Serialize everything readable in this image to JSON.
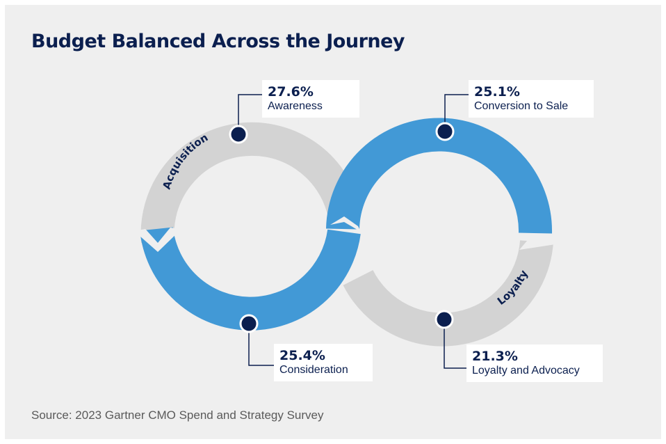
{
  "title": "Budget Balanced Across the Journey",
  "source": "Source: 2023 Gartner CMO Spend and Strategy Survey",
  "loop_labels": {
    "left": "Acquisition",
    "right": "Loyalty"
  },
  "stages": [
    {
      "id": "awareness",
      "value": "27.6%",
      "label": "Awareness"
    },
    {
      "id": "consideration",
      "value": "25.4%",
      "label": "Consideration"
    },
    {
      "id": "conversion",
      "value": "25.1%",
      "label": "Conversion to Sale"
    },
    {
      "id": "loyalty",
      "value": "21.3%",
      "label": "Loyalty and Advocacy"
    }
  ],
  "colors": {
    "blue": "#4299d6",
    "gray": "#d3d3d3",
    "navy": "#0b1f4f",
    "background": "#efefef"
  }
}
